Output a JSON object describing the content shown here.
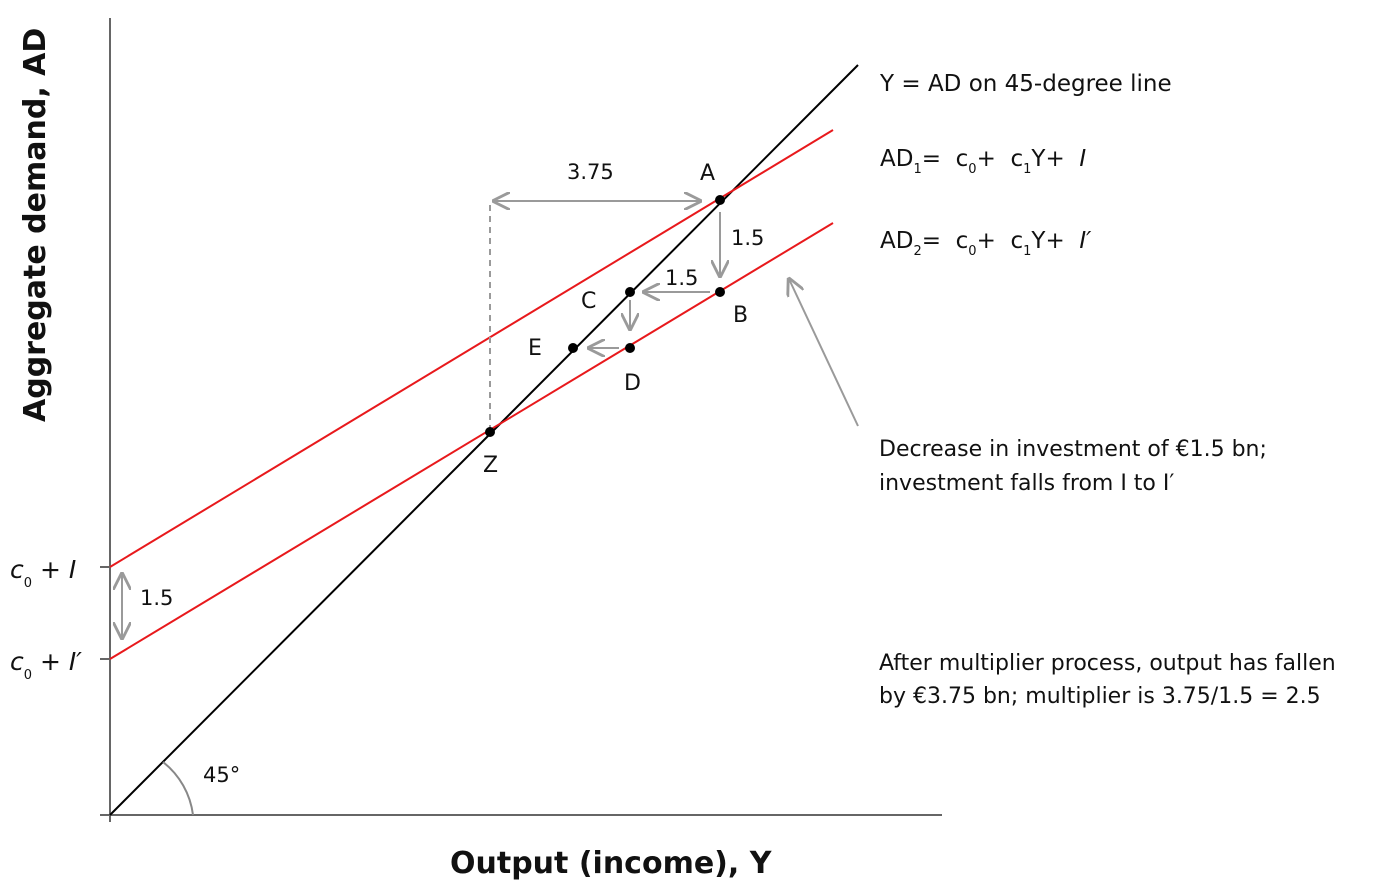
{
  "axes": {
    "x_title": "Output (income), Y",
    "y_title": "Aggregate demand, AD"
  },
  "lines": {
    "colors": {
      "ad": "#e8191c",
      "diagonal": "#000000",
      "arrow": "#9a9a9a"
    },
    "legend_45": "Y = AD on 45-degree line",
    "ad1": {
      "name": "AD",
      "sub": "1",
      "eq_pre": "=  c",
      "eq_sub0": "0",
      "eq_mid": "+  c",
      "eq_sub1": "1",
      "eq_post": "Y+  ",
      "eq_var": "I"
    },
    "ad2": {
      "name": "AD",
      "sub": "2",
      "eq_pre": "=  c",
      "eq_sub0": "0",
      "eq_mid": "+  c",
      "eq_sub1": "1",
      "eq_post": "Y+  ",
      "eq_var": "I′"
    }
  },
  "intercepts": {
    "upper": {
      "c": "c",
      "sub": "0",
      "op": " + ",
      "var": "I"
    },
    "lower": {
      "c": "c",
      "sub": "0",
      "op": " + ",
      "var": "I′"
    },
    "gap_label": "1.5"
  },
  "points": {
    "A": "A",
    "B": "B",
    "C": "C",
    "D": "D",
    "E": "E",
    "Z": "Z"
  },
  "steps": {
    "width_label": "3.75",
    "ab_label": "1.5",
    "bc_label": "1.5"
  },
  "angle_label": "45°",
  "notes": {
    "decrease_1": "Decrease in investment of €1.5 bn;",
    "decrease_2": "investment falls from I to I′",
    "after_1": "After multiplier process, output has fallen",
    "after_2": "by €3.75 bn; multiplier is 3.75/1.5 = 2.5"
  }
}
